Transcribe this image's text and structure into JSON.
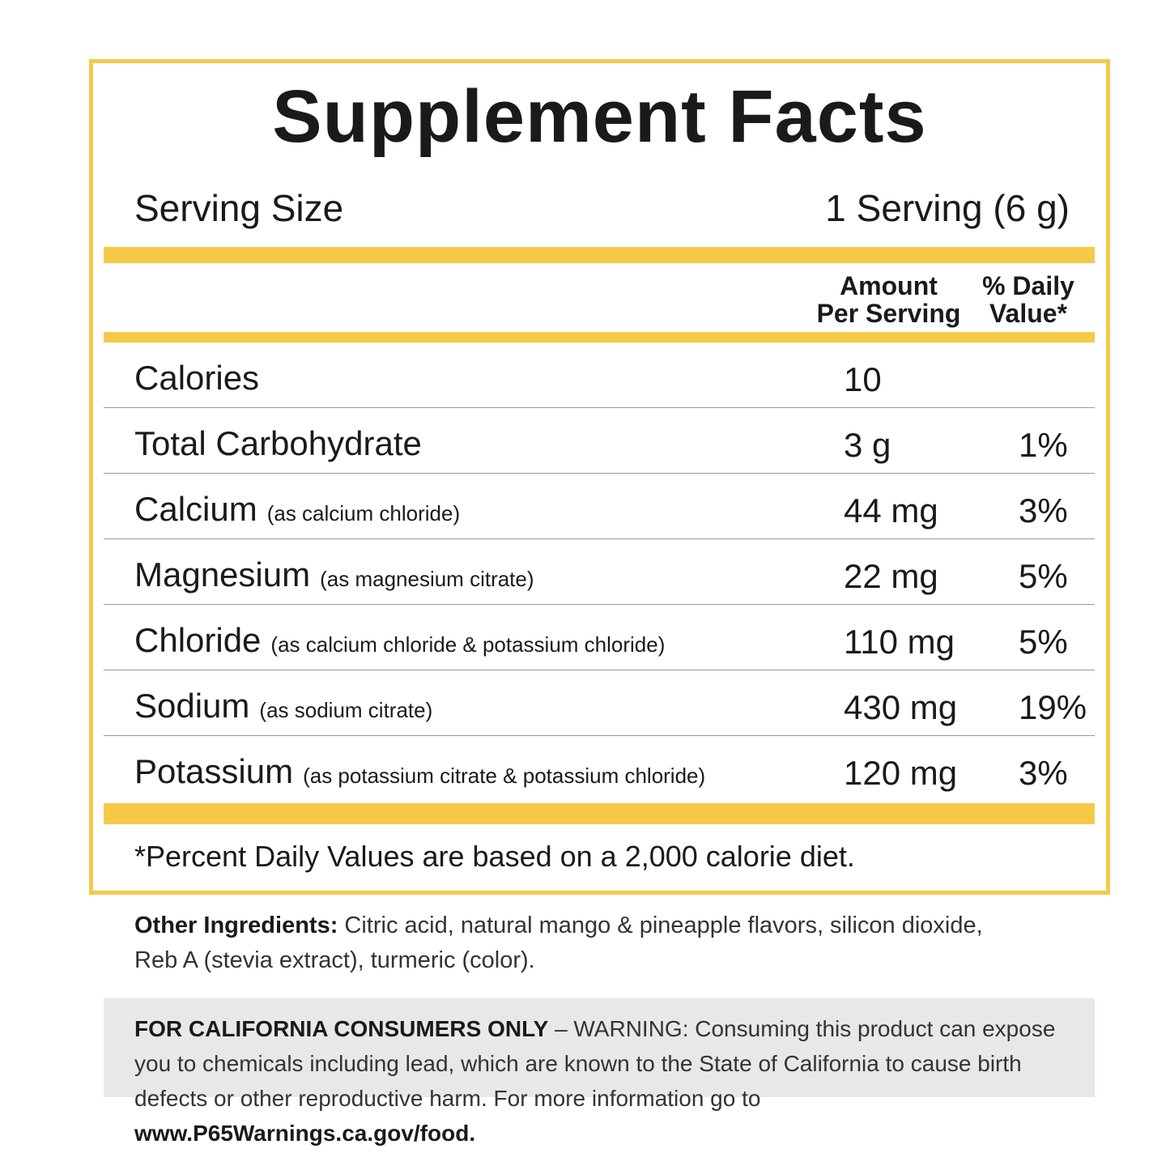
{
  "title": "Supplement Facts",
  "serving": {
    "label": "Serving Size",
    "value": "1 Serving (6 g)"
  },
  "header": {
    "amount": [
      "Amount",
      "Per Serving"
    ],
    "daily_value": [
      "% Daily",
      "Value*"
    ]
  },
  "rows": [
    {
      "name": "Calories",
      "amount": "10"
    },
    {
      "name": "Total Carbohydrate",
      "amount": "3 g",
      "dv": "1%"
    },
    {
      "name": "Calcium",
      "note": "(as calcium chloride)",
      "amount": "44 mg",
      "dv": "3%"
    },
    {
      "name": "Magnesium",
      "note": "(as magnesium citrate)",
      "amount": "22 mg",
      "dv": "5%"
    },
    {
      "name": "Chloride",
      "note": "(as calcium chloride & potassium chloride)",
      "amount": "110 mg",
      "dv": "5%"
    },
    {
      "name": "Sodium",
      "note": "(as sodium citrate)",
      "amount": "430 mg",
      "dv": "19%"
    },
    {
      "name": "Potassium",
      "note": "(as potassium citrate & potassium chloride)",
      "amount": "120 mg",
      "dv": "3%"
    }
  ],
  "footnote": "*Percent Daily Values are based on a 2,000 calorie diet.",
  "other_ingredients": {
    "label": "Other Ingredients:",
    "text": "Citric acid, natural mango & pineapple flavors, silicon dioxide, Reb A (stevia extract), turmeric (color)."
  },
  "warning": {
    "label": "FOR CALIFORNIA CONSUMERS ONLY",
    "text": "– WARNING: Consuming this product can expose you to chemicals including lead, which are known to the State of California to cause birth defects or other reproductive harm. For more information go to",
    "url": "www.P65Warnings.ca.gov/food."
  }
}
